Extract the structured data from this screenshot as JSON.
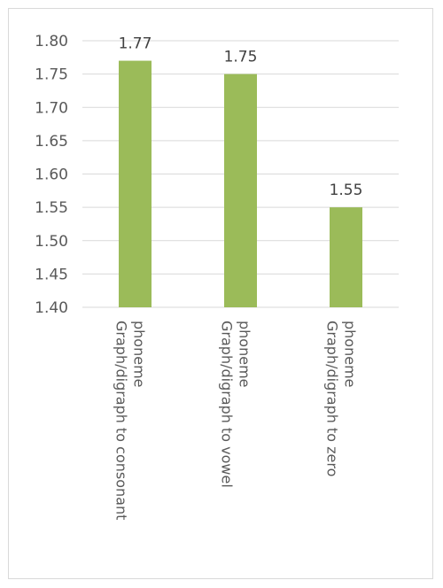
{
  "chart_data": {
    "type": "bar",
    "categories": [
      [
        "Graph/digraph to consonant",
        "phoneme"
      ],
      [
        "Graph/digraph to vowel",
        "phoneme"
      ],
      [
        "Graph/digraph to zero",
        "phoneme"
      ]
    ],
    "values": [
      1.77,
      1.75,
      1.55
    ],
    "data_labels": [
      "1.77",
      "1.75",
      "1.55"
    ],
    "ylim": [
      1.4,
      1.8
    ],
    "y_ticks": [
      "1.80",
      "1.75",
      "1.70",
      "1.65",
      "1.60",
      "1.55",
      "1.50",
      "1.45",
      "1.40"
    ],
    "grid": true,
    "legend": "none",
    "title": "",
    "xlabel": "",
    "ylabel": "",
    "colors": {
      "bar": "#9bbb59",
      "grid": "#d9d9d9",
      "axis_text": "#595959",
      "label_text": "#404040"
    }
  }
}
